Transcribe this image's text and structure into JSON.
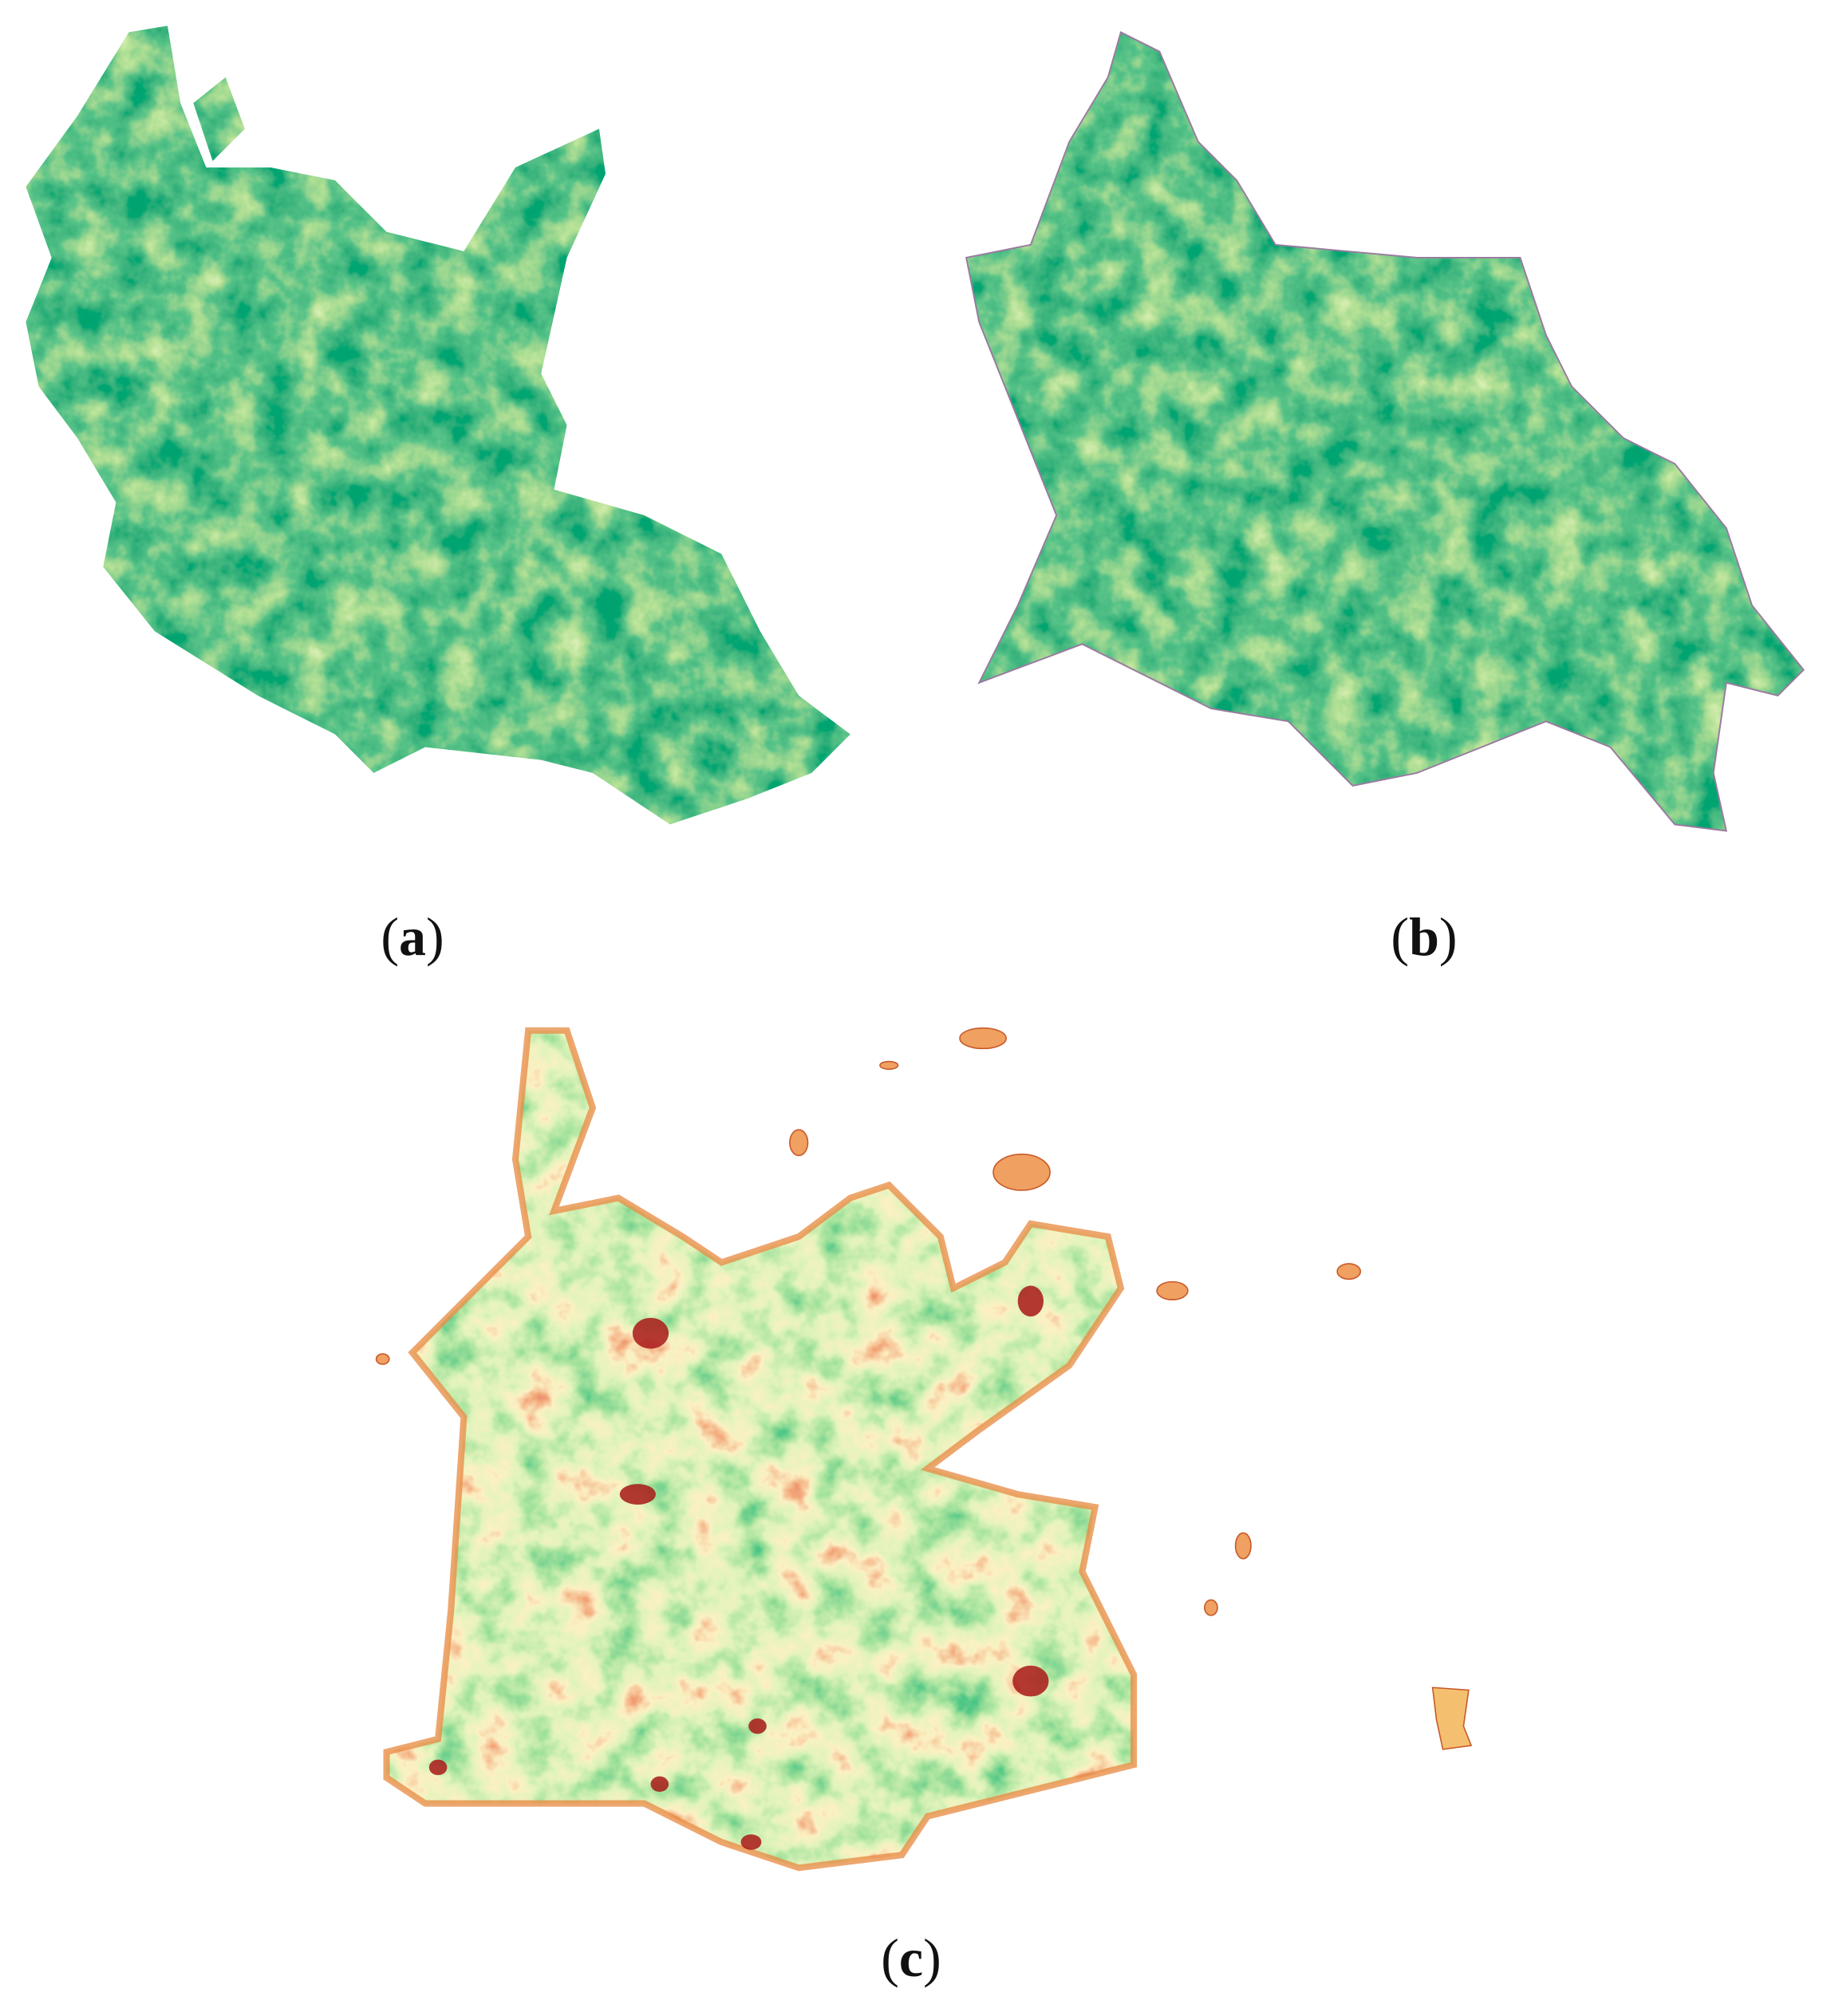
{
  "figure": {
    "panels": [
      {
        "id": "a",
        "label_open": "(",
        "letter": "a",
        "label_close": ")",
        "colormap": "green"
      },
      {
        "id": "b",
        "label_open": "(",
        "letter": "b",
        "label_close": ")",
        "colormap": "green"
      },
      {
        "id": "c",
        "label_open": "(",
        "letter": "c",
        "label_close": ")",
        "colormap": "red-yellow-green"
      }
    ],
    "colors": {
      "dark_green": "#0b6b2e",
      "light_green": "#d4ec8c",
      "yellow": "#f6f0a0",
      "orange": "#f0a050",
      "red": "#a81818"
    }
  }
}
